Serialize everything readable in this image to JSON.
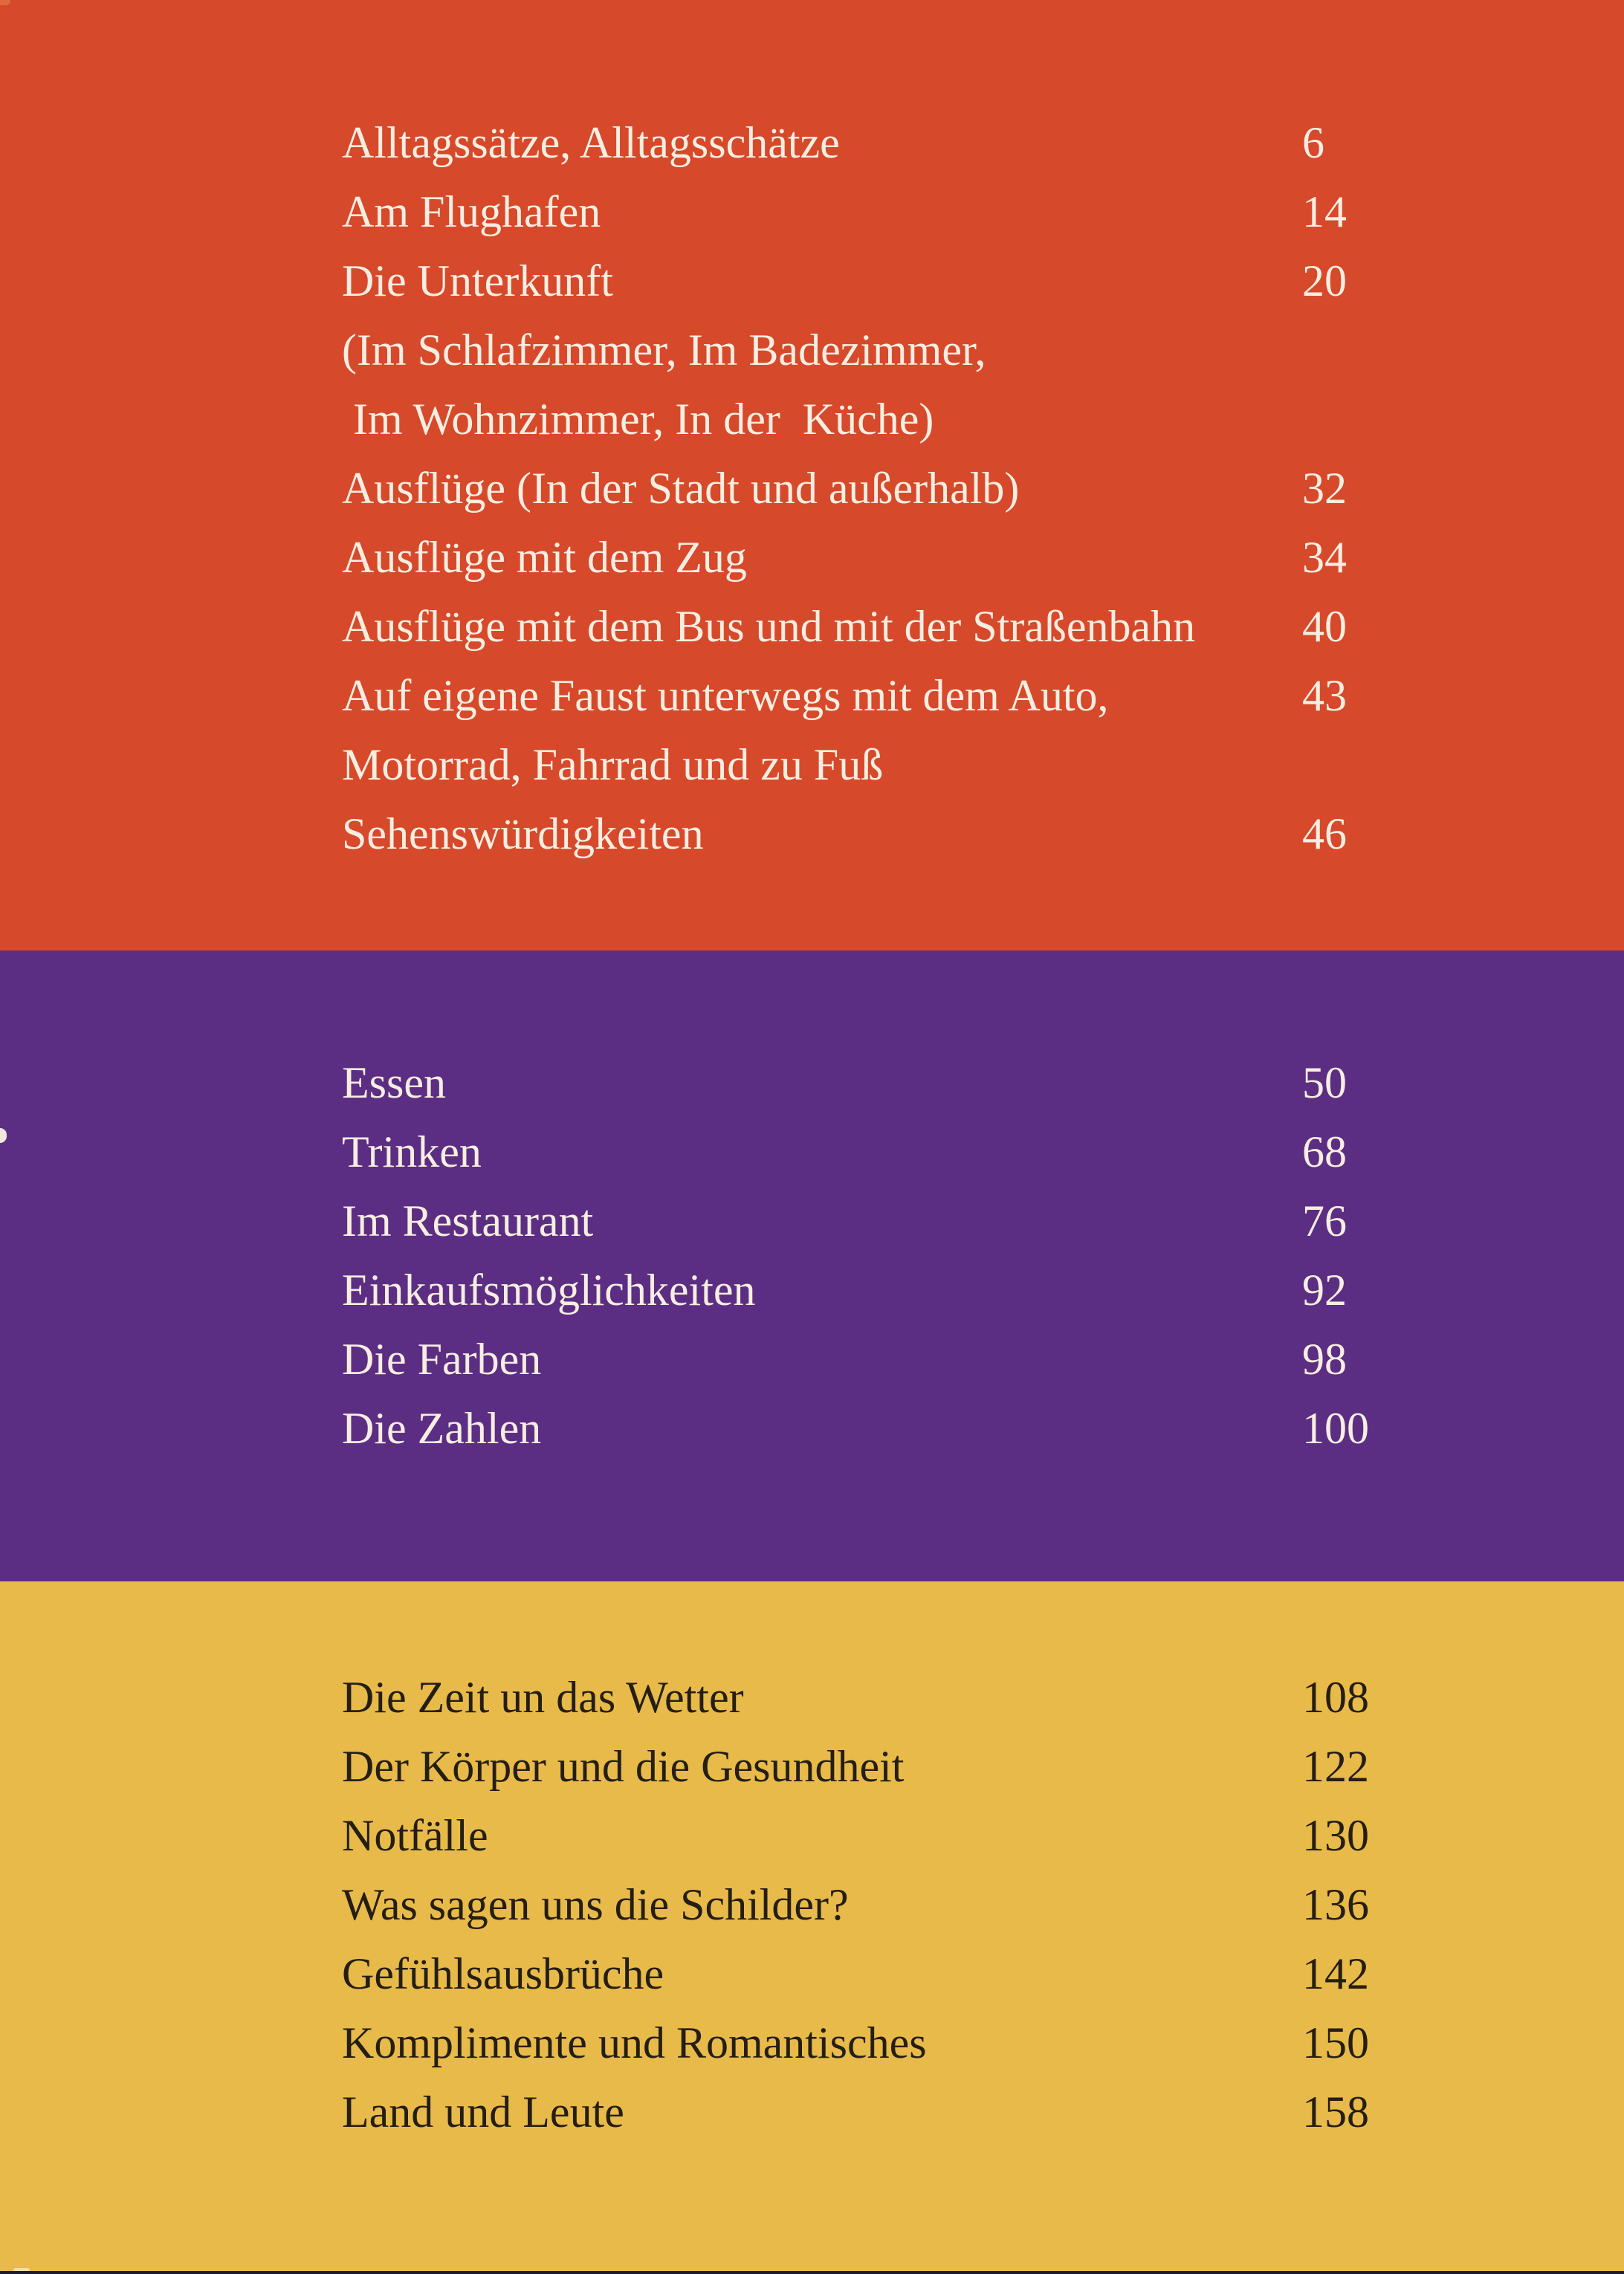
{
  "colors": {
    "section-travel": "#d7492b",
    "section-food": "#5c2e83",
    "section-daily": "#e8ba49",
    "text-on-dark": "#f6eee1",
    "text-on-light": "#241e14",
    "bottom-edge": "#1b1b35"
  },
  "toc": {
    "sections": [
      {
        "name": "travel-basics",
        "entries": [
          {
            "title": "Alltagssätze, Alltagsschätze",
            "page": "6"
          },
          {
            "title": "Am Flughafen",
            "page": "14"
          },
          {
            "title": "Die Unterkunft",
            "page": "20"
          },
          {
            "title": "(Im Schlafzimmer, Im Badezimmer,",
            "page": ""
          },
          {
            "title": " Im Wohnzimmer, In der  Küche)",
            "page": ""
          },
          {
            "title": "Ausflüge (In der Stadt und außerhalb)",
            "page": "32"
          },
          {
            "title": "Ausflüge mit dem Zug",
            "page": "34"
          },
          {
            "title": "Ausflüge mit dem Bus und mit der Straßenbahn",
            "page": "40"
          },
          {
            "title": "Auf eigene Faust unterwegs mit dem Auto,",
            "page": "43"
          },
          {
            "title": "Motorrad, Fahrrad und zu Fuß",
            "page": ""
          },
          {
            "title": "Sehenswürdigkeiten",
            "page": "46"
          }
        ]
      },
      {
        "name": "food-and-shopping",
        "entries": [
          {
            "title": "Essen",
            "page": "50"
          },
          {
            "title": "Trinken",
            "page": "68"
          },
          {
            "title": "Im Restaurant",
            "page": "76"
          },
          {
            "title": "Einkaufsmöglichkeiten",
            "page": "92"
          },
          {
            "title": "Die Farben",
            "page": "98"
          },
          {
            "title": "Die Zahlen",
            "page": "100"
          }
        ]
      },
      {
        "name": "daily-life",
        "entries": [
          {
            "title": "Die Zeit un das Wetter",
            "page": "108"
          },
          {
            "title": "Der Körper und die Gesundheit",
            "page": "122"
          },
          {
            "title": "Notfälle",
            "page": "130"
          },
          {
            "title": "Was sagen uns die Schilder?",
            "page": "136"
          },
          {
            "title": "Gefühlsausbrüche",
            "page": "142"
          },
          {
            "title": "Komplimente und Romantisches",
            "page": "150"
          },
          {
            "title": "Land und Leute",
            "page": "158"
          }
        ]
      }
    ]
  }
}
